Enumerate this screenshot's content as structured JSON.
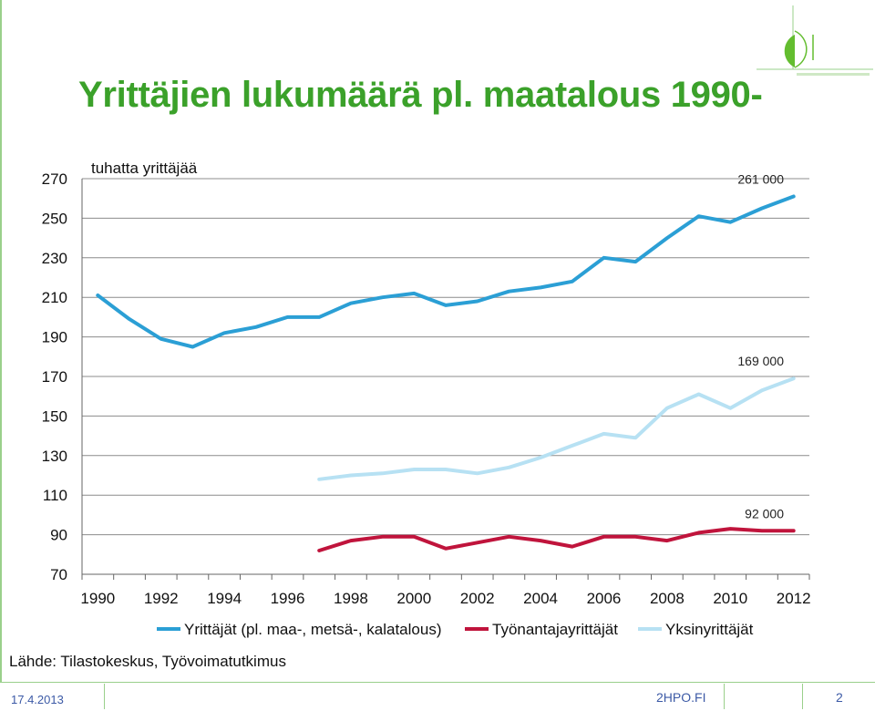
{
  "slide": {
    "title": "Yrittäjien lukumäärä pl. maatalous 1990-",
    "source": "Lähde: Tilastokeskus, Työvoimatutkimus",
    "footer_date": "17.4.2013",
    "footer_site": "2HPO.FI",
    "page_number": "2"
  },
  "chart_data": {
    "type": "line",
    "unit_label": "tuhatta yrittäjää",
    "ylim": [
      70,
      270
    ],
    "yticks": [
      "270",
      "250",
      "230",
      "210",
      "190",
      "170",
      "150",
      "130",
      "110",
      "90",
      "70"
    ],
    "xlabels": [
      "1990",
      "1992",
      "1994",
      "1996",
      "1998",
      "2000",
      "2002",
      "2004",
      "2006",
      "2008",
      "2010",
      "2012"
    ],
    "x": [
      1990,
      1991,
      1992,
      1993,
      1994,
      1995,
      1996,
      1997,
      1998,
      1999,
      2000,
      2001,
      2002,
      2003,
      2004,
      2005,
      2006,
      2007,
      2008,
      2009,
      2010,
      2011,
      2012
    ],
    "grid": true,
    "legend_position": "bottom",
    "series": [
      {
        "name": "Yrittäjät (pl. maa-, metsä-, kalatalous)",
        "color": "#2b9fd5",
        "values": [
          211,
          199,
          189,
          185,
          192,
          195,
          200,
          200,
          207,
          210,
          212,
          206,
          208,
          213,
          215,
          218,
          230,
          228,
          240,
          251,
          248,
          255,
          261
        ]
      },
      {
        "name": "Työnantajayrittäjät",
        "color": "#c0143c",
        "values": [
          null,
          null,
          null,
          null,
          null,
          null,
          null,
          82,
          87,
          89,
          89,
          83,
          86,
          89,
          87,
          84,
          89,
          89,
          87,
          91,
          93,
          92,
          92
        ]
      },
      {
        "name": "Yksinyrittäjät",
        "color": "#b7e1f3",
        "values": [
          null,
          null,
          null,
          null,
          null,
          null,
          null,
          118,
          120,
          121,
          123,
          123,
          121,
          124,
          129,
          135,
          141,
          139,
          154,
          161,
          154,
          163,
          169
        ]
      }
    ],
    "annotations": [
      {
        "text": "261 000",
        "x": 2012,
        "y": 261
      },
      {
        "text": "169 000",
        "x": 2012,
        "y": 169
      },
      {
        "text": "92 000",
        "x": 2012,
        "y": 92
      }
    ]
  }
}
